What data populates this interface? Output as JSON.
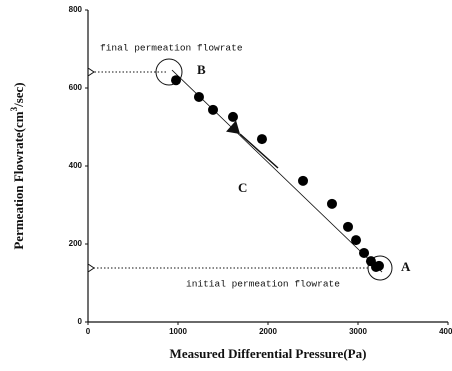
{
  "chart_data": {
    "type": "scatter",
    "x_label": "Measured Differential Pressure(Pa)",
    "y_label": {
      "before": "Permeation Flowrate(cm",
      "sup": "3",
      "after": "/sec)"
    },
    "x": [
      978,
      1233,
      1389,
      1611,
      1933,
      2389,
      2711,
      2889,
      2978,
      3067,
      3144,
      3200,
      3233
    ],
    "values": [
      620,
      577,
      544,
      526,
      469,
      362,
      303,
      244,
      210,
      177,
      156,
      141,
      144
    ],
    "color": "#000000",
    "fit": {
      "x": [
        933,
        3267
      ],
      "y": [
        646,
        128
      ]
    },
    "xlim": [
      0,
      4000
    ],
    "xticks": [
      0,
      1000,
      2000,
      3000,
      4000
    ],
    "ylim": [
      0,
      800
    ],
    "yticks": [
      0,
      200,
      400,
      600,
      800
    ],
    "annotations": {
      "final": "final permeation flowrate",
      "initial": "initial permeation flowrate",
      "A": "A",
      "B": "B",
      "C": "C"
    }
  }
}
